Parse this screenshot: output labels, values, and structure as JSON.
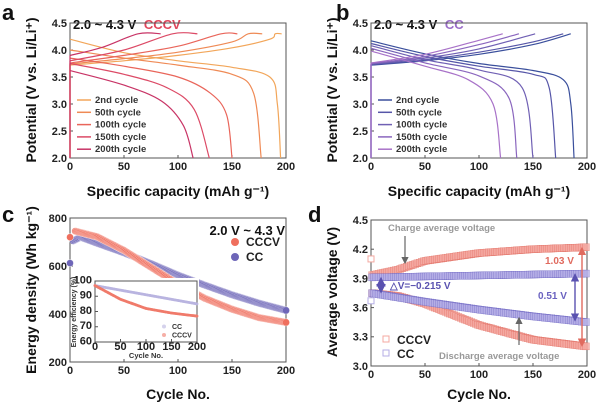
{
  "chart_data": [
    {
      "panel": "a",
      "type": "line",
      "title_prefix": "2.0 ~ 4.3 V",
      "title_mode": "CCCV",
      "title_mode_color": "#e0455a",
      "xlabel": "Specific capacity (mAh g⁻¹)",
      "ylabel": "Potential (V vs. Li/Li⁺)",
      "xlim": [
        0,
        200
      ],
      "ylim": [
        2.0,
        4.5
      ],
      "xticks": [
        "0",
        "50",
        "100",
        "150",
        "200"
      ],
      "yticks": [
        "2.0",
        "2.5",
        "3.0",
        "3.5",
        "4.0",
        "4.5"
      ],
      "legend": "left",
      "series": [
        {
          "name": "2nd cycle",
          "color": "#f2a65a",
          "charge": [
            [
              0,
              3.72
            ],
            [
              50,
              3.8
            ],
            [
              100,
              3.9
            ],
            [
              150,
              4.04
            ],
            [
              185,
              4.2
            ],
            [
              190,
              4.3
            ],
            [
              196,
              4.3
            ]
          ],
          "discharge": [
            [
              0,
              4.2
            ],
            [
              50,
              3.95
            ],
            [
              100,
              3.8
            ],
            [
              150,
              3.68
            ],
            [
              185,
              3.5
            ],
            [
              192,
              3.0
            ],
            [
              195,
              2.0
            ]
          ]
        },
        {
          "name": "50th cycle",
          "color": "#ef8a55",
          "charge": [
            [
              0,
              3.74
            ],
            [
              50,
              3.84
            ],
            [
              100,
              3.96
            ],
            [
              150,
              4.15
            ],
            [
              165,
              4.3
            ],
            [
              178,
              4.3
            ]
          ],
          "discharge": [
            [
              0,
              4.0
            ],
            [
              50,
              3.85
            ],
            [
              100,
              3.72
            ],
            [
              150,
              3.55
            ],
            [
              170,
              3.2
            ],
            [
              177,
              2.0
            ]
          ]
        },
        {
          "name": "100th cycle",
          "color": "#e9655a",
          "charge": [
            [
              0,
              3.76
            ],
            [
              50,
              3.9
            ],
            [
              100,
              4.07
            ],
            [
              140,
              4.3
            ],
            [
              155,
              4.3
            ]
          ],
          "discharge": [
            [
              0,
              3.85
            ],
            [
              50,
              3.7
            ],
            [
              100,
              3.5
            ],
            [
              130,
              3.2
            ],
            [
              145,
              2.8
            ],
            [
              150,
              2.0
            ]
          ]
        },
        {
          "name": "150th cycle",
          "color": "#dc4a66",
          "charge": [
            [
              0,
              3.8
            ],
            [
              50,
              4.0
            ],
            [
              95,
              4.3
            ],
            [
              118,
              4.3
            ]
          ],
          "discharge": [
            [
              0,
              3.75
            ],
            [
              50,
              3.55
            ],
            [
              90,
              3.3
            ],
            [
              115,
              2.9
            ],
            [
              129,
              2.0
            ]
          ]
        },
        {
          "name": "200th cycle",
          "color": "#c83466",
          "charge": [
            [
              0,
              3.9
            ],
            [
              30,
              4.05
            ],
            [
              63,
              4.3
            ],
            [
              84,
              4.3
            ]
          ],
          "discharge": [
            [
              0,
              3.62
            ],
            [
              50,
              3.35
            ],
            [
              85,
              3.05
            ],
            [
              105,
              2.6
            ],
            [
              114,
              2.0
            ]
          ]
        }
      ]
    },
    {
      "panel": "b",
      "type": "line",
      "title_prefix": "2.0 ~ 4.3 V",
      "title_mode": "CC",
      "title_mode_color": "#9a6cc8",
      "xlabel": "Specific capacity (mAh g⁻¹)",
      "ylabel": "Potential (V vs. Li/Li⁺)",
      "xlim": [
        0,
        200
      ],
      "ylim": [
        2.0,
        4.5
      ],
      "xticks": [
        "0",
        "50",
        "100",
        "150",
        "200"
      ],
      "yticks": [
        "2.0",
        "2.5",
        "3.0",
        "3.5",
        "4.0",
        "4.5"
      ],
      "legend": "left",
      "series": [
        {
          "name": "2nd cycle",
          "color": "#3a4f9c",
          "charge": [
            [
              0,
              3.72
            ],
            [
              50,
              3.8
            ],
            [
              100,
              3.92
            ],
            [
              150,
              4.1
            ],
            [
              185,
              4.3
            ]
          ],
          "discharge": [
            [
              0,
              4.17
            ],
            [
              50,
              3.93
            ],
            [
              100,
              3.75
            ],
            [
              150,
              3.62
            ],
            [
              178,
              3.45
            ],
            [
              185,
              3.0
            ],
            [
              188,
              2.0
            ]
          ]
        },
        {
          "name": "50th cycle",
          "color": "#5656a8",
          "charge": [
            [
              0,
              3.73
            ],
            [
              50,
              3.82
            ],
            [
              100,
              3.96
            ],
            [
              150,
              4.15
            ],
            [
              178,
              4.3
            ]
          ],
          "discharge": [
            [
              0,
              4.12
            ],
            [
              50,
              3.88
            ],
            [
              100,
              3.7
            ],
            [
              150,
              3.55
            ],
            [
              165,
              3.3
            ],
            [
              171,
              2.0
            ]
          ]
        },
        {
          "name": "100th cycle",
          "color": "#7060b4",
          "charge": [
            [
              0,
              3.74
            ],
            [
              50,
              3.85
            ],
            [
              100,
              4.02
            ],
            [
              152,
              4.3
            ]
          ],
          "discharge": [
            [
              0,
              4.08
            ],
            [
              50,
              3.82
            ],
            [
              100,
              3.63
            ],
            [
              140,
              3.3
            ],
            [
              150,
              2.0
            ]
          ]
        },
        {
          "name": "150th cycle",
          "color": "#8a66be",
          "charge": [
            [
              0,
              3.75
            ],
            [
              50,
              3.88
            ],
            [
              100,
              4.1
            ],
            [
              137,
              4.3
            ]
          ],
          "discharge": [
            [
              0,
              4.03
            ],
            [
              50,
              3.76
            ],
            [
              100,
              3.52
            ],
            [
              128,
              3.1
            ],
            [
              135,
              2.0
            ]
          ]
        },
        {
          "name": "200th cycle",
          "color": "#a872c8",
          "charge": [
            [
              0,
              3.76
            ],
            [
              50,
              3.92
            ],
            [
              100,
              4.18
            ],
            [
              122,
              4.3
            ]
          ],
          "discharge": [
            [
              0,
              3.98
            ],
            [
              50,
              3.7
            ],
            [
              90,
              3.45
            ],
            [
              113,
              3.0
            ],
            [
              120,
              2.0
            ]
          ]
        }
      ]
    },
    {
      "panel": "c",
      "type": "scatter",
      "title": "2.0 V ~ 4.3 V",
      "xlabel": "Cycle No.",
      "ylabel": "Energy density (Wh kg⁻¹)",
      "xlim": [
        0,
        200
      ],
      "ylim": [
        200,
        800
      ],
      "xticks": [
        "0",
        "50",
        "100",
        "150",
        "200"
      ],
      "yticks": [
        "200",
        "400",
        "600",
        "800"
      ],
      "legend": "top-right",
      "series": [
        {
          "name": "CCCV",
          "color": "#ef6f5e",
          "points": [
            [
              0,
              720
            ],
            [
              5,
              745
            ],
            [
              25,
              722
            ],
            [
              50,
              665
            ],
            [
              75,
              595
            ],
            [
              100,
              525
            ],
            [
              125,
              465
            ],
            [
              150,
              420
            ],
            [
              175,
              385
            ],
            [
              200,
              365
            ]
          ]
        },
        {
          "name": "CC",
          "color": "#6e66b8",
          "points": [
            [
              0,
              612
            ],
            [
              3,
              705
            ],
            [
              10,
              720
            ],
            [
              25,
              695
            ],
            [
              50,
              655
            ],
            [
              75,
              610
            ],
            [
              100,
              562
            ],
            [
              125,
              520
            ],
            [
              150,
              480
            ],
            [
              175,
              445
            ],
            [
              200,
              415
            ]
          ]
        }
      ],
      "inset": {
        "xlabel": "Cycle No.",
        "ylabel": "Energy efficiency (%)",
        "xlim": [
          0,
          200
        ],
        "ylim": [
          60,
          100
        ],
        "xticks": [
          "0",
          "50",
          "100",
          "150",
          "200"
        ],
        "yticks": [
          "60",
          "70",
          "80",
          "90",
          "100"
        ],
        "legend": "bottom-right",
        "series": [
          {
            "name": "CC",
            "color": "#b9b4e0",
            "points": [
              [
                0,
                97
              ],
              [
                100,
                91
              ],
              [
                200,
                85
              ]
            ]
          },
          {
            "name": "CCCV",
            "color": "#f07a6a",
            "points": [
              [
                0,
                97
              ],
              [
                50,
                88
              ],
              [
                100,
                82
              ],
              [
                150,
                79
              ],
              [
                200,
                77
              ]
            ]
          }
        ]
      }
    },
    {
      "panel": "d",
      "type": "scatter",
      "xlabel": "Cycle No.",
      "ylabel": "Average voltage (V)",
      "xlim": [
        0,
        200
      ],
      "ylim": [
        3.0,
        4.5
      ],
      "xticks": [
        "0",
        "50",
        "100",
        "150",
        "200"
      ],
      "yticks": [
        "3.0",
        "3.3",
        "3.6",
        "3.9",
        "4.2",
        "4.5"
      ],
      "legend": "bottom-left",
      "series": [
        {
          "name": "CCCV",
          "color": "#f4a8a0",
          "edge": "#e06a5e",
          "charge": [
            [
              0,
              3.93
            ],
            [
              25,
              3.99
            ],
            [
              50,
              4.08
            ],
            [
              100,
              4.16
            ],
            [
              150,
              4.2
            ],
            [
              200,
              4.22
            ]
          ],
          "discharge": [
            [
              0,
              3.75
            ],
            [
              25,
              3.72
            ],
            [
              50,
              3.64
            ],
            [
              100,
              3.42
            ],
            [
              150,
              3.27
            ],
            [
              200,
              3.2
            ]
          ],
          "outliers": [
            [
              0,
              4.1
            ]
          ]
        },
        {
          "name": "CC",
          "color": "#b4aee6",
          "edge": "#6a62c0",
          "charge": [
            [
              0,
              3.91
            ],
            [
              100,
              3.93
            ],
            [
              200,
              3.95
            ]
          ],
          "discharge": [
            [
              0,
              3.75
            ],
            [
              50,
              3.66
            ],
            [
              100,
              3.58
            ],
            [
              150,
              3.51
            ],
            [
              200,
              3.45
            ]
          ],
          "outliers": [
            [
              0,
              3.67
            ]
          ]
        }
      ],
      "annotations": {
        "charge_label": "Charge average voltage",
        "discharge_label": "Discharge average voltage",
        "delta_v": "△V=−0.215 V",
        "cccv_gap": "1.03 V",
        "cc_gap": "0.51 V"
      }
    }
  ],
  "panel_letters": [
    "a",
    "b",
    "c",
    "d"
  ]
}
